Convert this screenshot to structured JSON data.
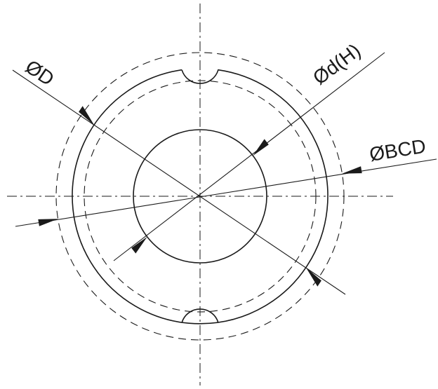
{
  "labels": {
    "outer_diameter": "ØD",
    "bore_diameter": "Ød(H)",
    "bolt_circle_diameter": "ØBCD"
  },
  "colors": {
    "line": "#1a1a1a",
    "background": "#ffffff"
  }
}
